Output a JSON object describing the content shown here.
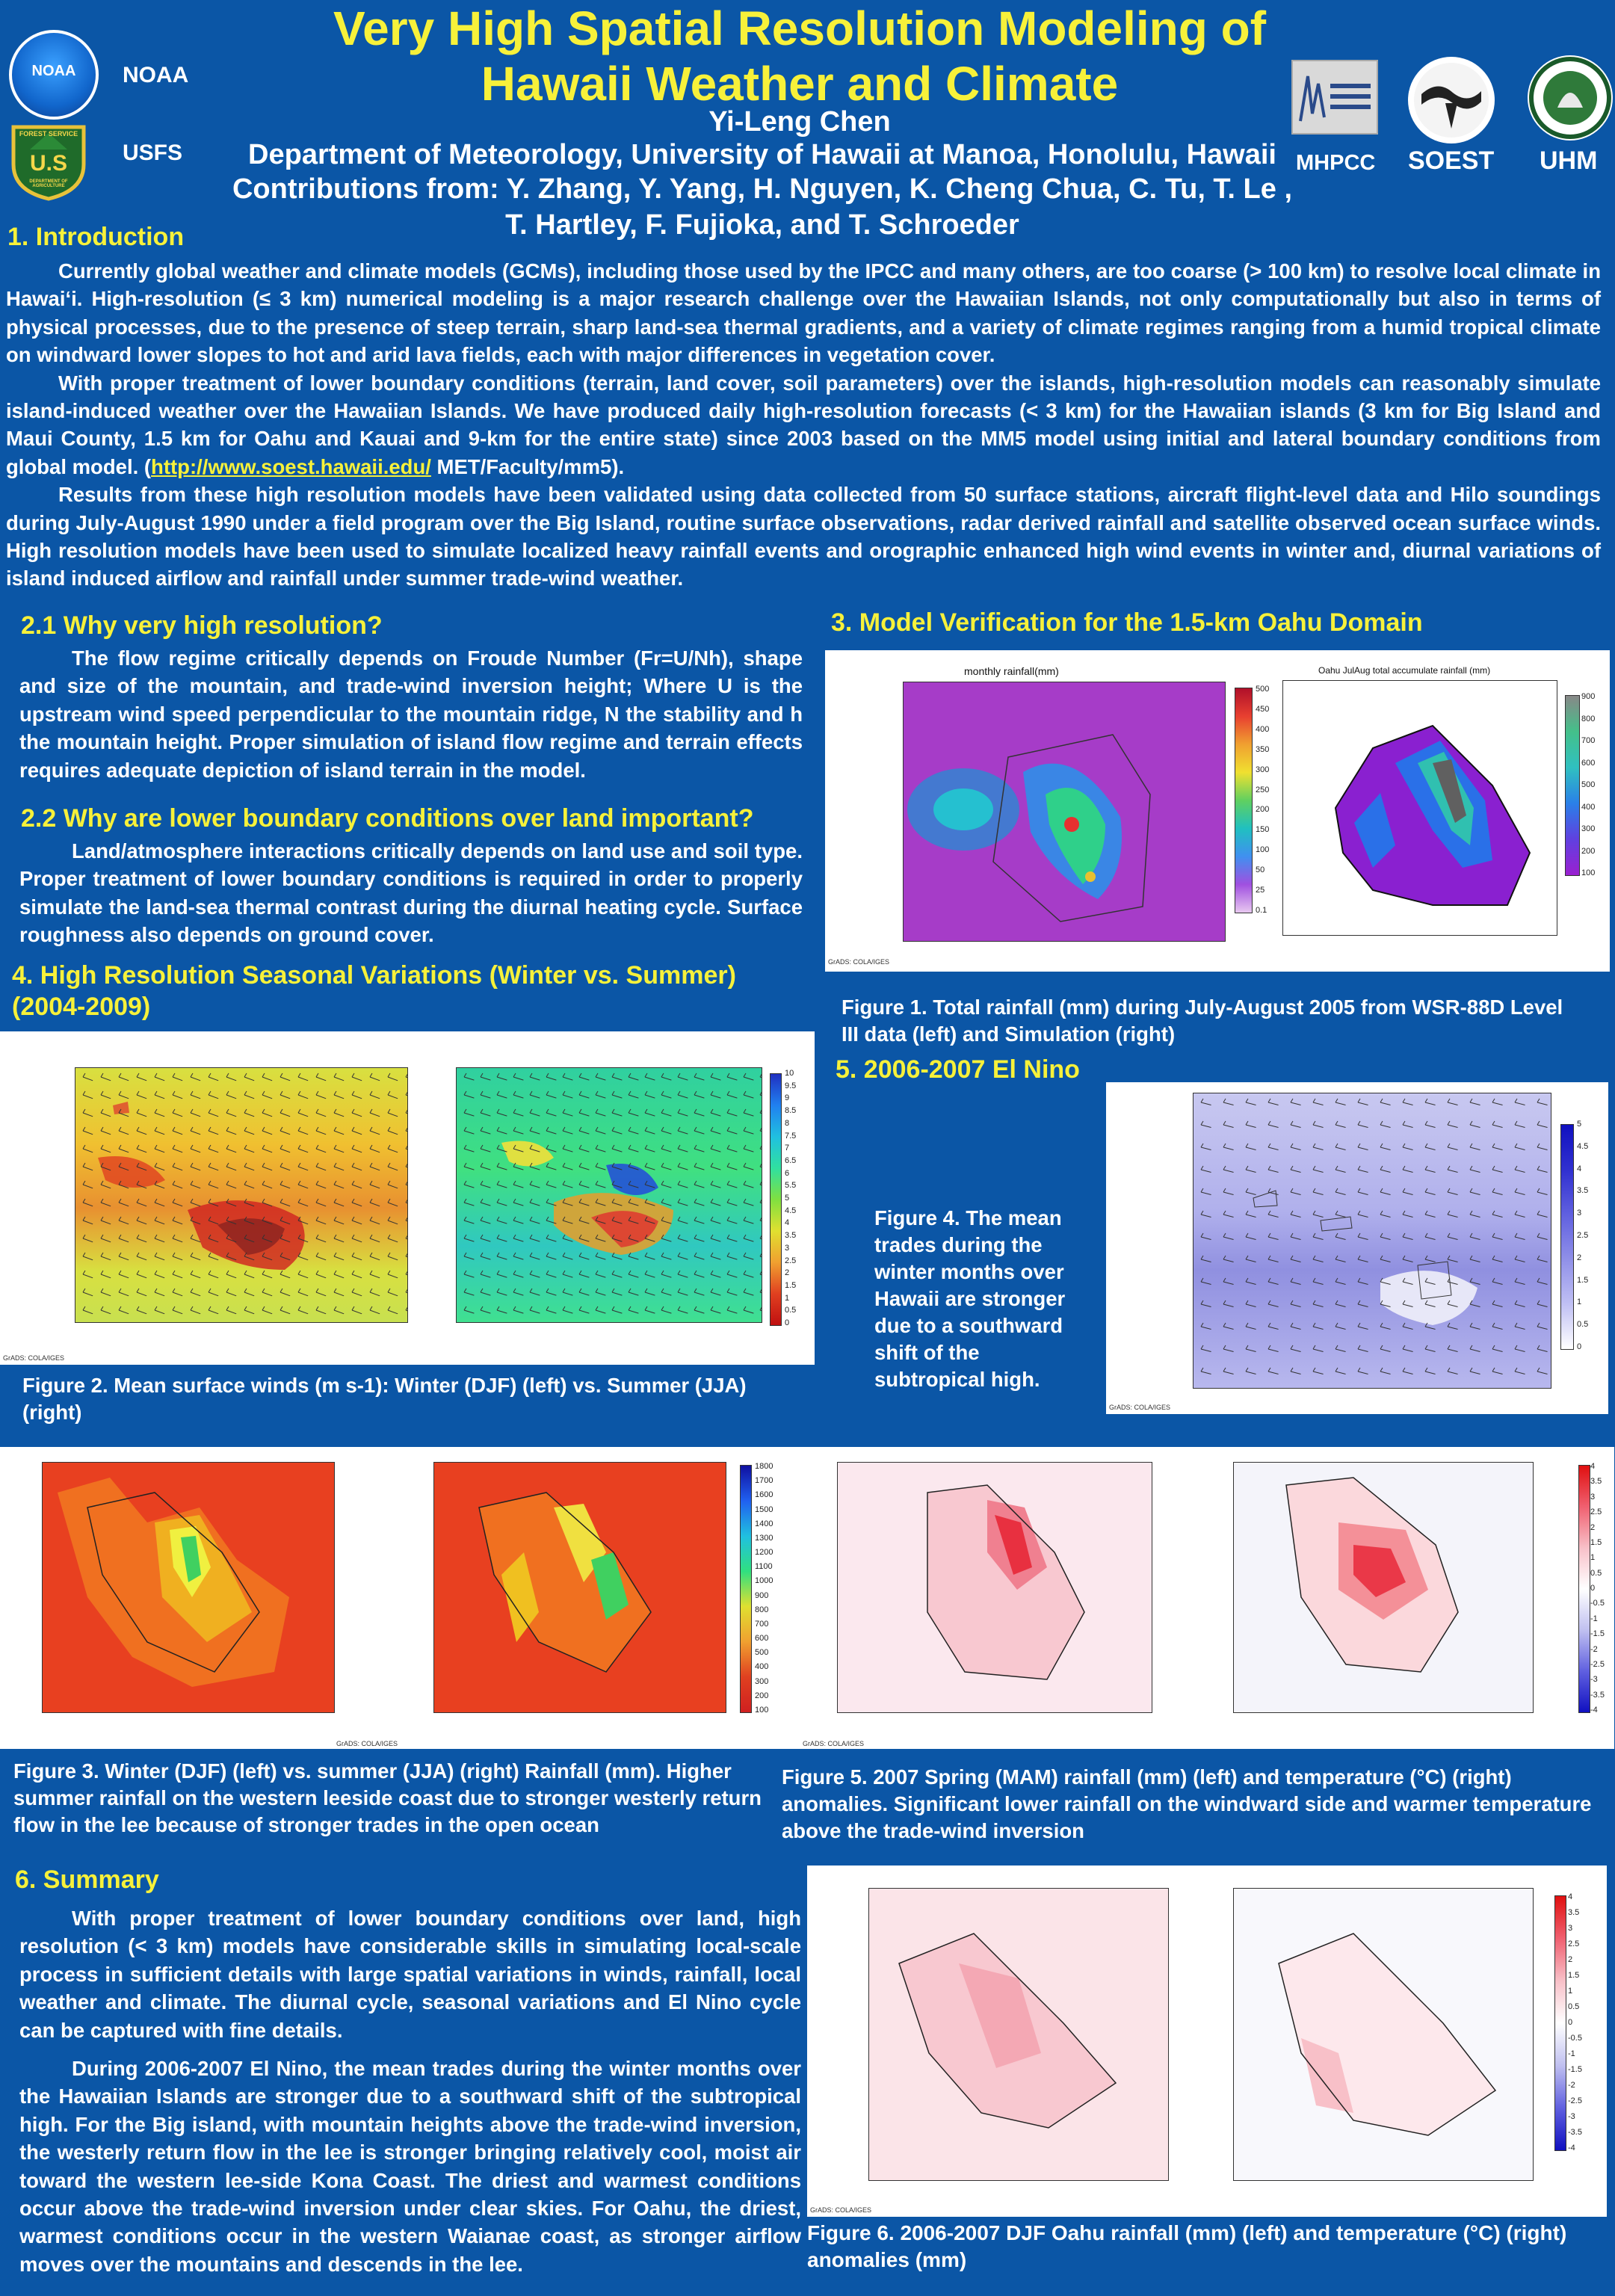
{
  "title": {
    "line1": "Very High Spatial Resolution Modeling of",
    "line2": "Hawaii Weather and Climate"
  },
  "author": "Yi-Leng Chen",
  "affiliation": "Department of Meteorology, University of Hawaii at Manoa, Honolulu, Hawaii",
  "contributions_line1": "Contributions from: Y. Zhang, Y. Yang, H. Nguyen, K. Cheng Chua, C. Tu, T. Le ,",
  "contributions_line2": "T. Hartley, F. Fujioka, and T. Schroeder",
  "logos": {
    "noaa": "NOAA",
    "noaa_badge": "NOAA",
    "usfs": "USFS",
    "usfs_badge_top": "FOREST SERVICE",
    "usfs_badge_mid": "U.S",
    "usfs_badge_bottom": "DEPARTMENT OF AGRICULTURE",
    "mhpcc": "MHPCC",
    "soest": "SOEST",
    "uhm": "UHM"
  },
  "sections": {
    "intro": {
      "heading": "1. Introduction",
      "p1": "Currently global weather and climate models (GCMs), including those used by the IPCC and many others, are too coarse (> 100 km) to resolve local climate in Hawai‘i.    High-resolution (≤ 3 km) numerical modeling is a major research challenge over the Hawaiian Islands, not only computationally but also in terms of physical processes, due to the presence of steep terrain, sharp land-sea thermal gradients, and a variety of climate regimes ranging from a humid tropical climate on windward lower slopes to hot and arid lava fields, each with major differences in vegetation cover.",
      "p2": "With proper treatment of lower boundary conditions (terrain, land cover, soil parameters) over the islands, high-resolution models can reasonably simulate island-induced weather over the Hawaiian Islands.  We have produced daily high-resolution forecasts (< 3 km) for the Hawaiian islands (3 km for Big Island and Maui County, 1.5 km for Oahu and Kauai and 9-km for the entire state) since 2003 based on the MM5 model using initial and lateral boundary conditions from global model. (",
      "p2_link": "http://www.soest.hawaii.edu/",
      "p2_tail": " MET/Faculty/mm5).",
      "p3": "Results from these high resolution models have been validated using data collected from 50 surface stations, aircraft flight-level data and Hilo soundings during July-August 1990 under a field program over the Big Island, routine surface observations, radar derived rainfall and satellite observed ocean surface winds. High resolution models have been used to simulate localized heavy rainfall events and orographic enhanced high wind events  in winter and, diurnal variations of island induced airflow and rainfall under summer trade-wind weather."
    },
    "s21": {
      "heading": "2.1 Why very high resolution?",
      "body": "The flow regime critically depends on Froude Number (Fr=U/Nh), shape and size of the mountain, and trade-wind inversion height; Where U is the upstream wind speed perpendicular to the mountain ridge, N the stability and h the mountain height. Proper simulation of island flow regime and terrain effects requires adequate depiction of island terrain in the model."
    },
    "s22": {
      "heading": "2.2 Why are lower boundary conditions over land important?",
      "body": "Land/atmosphere interactions critically depends on land use and soil type.   Proper treatment of lower boundary conditions is required in order to properly simulate the land-sea thermal contrast during the diurnal heating cycle. Surface roughness also depends on ground cover."
    },
    "s3": {
      "heading": "3. Model Verification for the 1.5-km Oahu Domain"
    },
    "s4": {
      "heading_line1": "4. High Resolution Seasonal Variations (Winter vs. Summer)",
      "heading_line2": "(2004-2009)"
    },
    "s5": {
      "heading": "5. 2006-2007 El Nino"
    },
    "s6": {
      "heading": "6. Summary",
      "p1": "With proper treatment of lower boundary conditions over land, high resolution (< 3 km) models have considerable skills in simulating local-scale process in sufficient details with large spatial variations in winds, rainfall, local weather and climate. The diurnal cycle, seasonal variations and El Nino cycle can be captured  with fine details.",
      "p2": "During 2006-2007 El Nino, the mean trades during the winter months over the Hawaiian Islands are stronger due to a southward shift of the subtropical high. For the Big island, with mountain heights above the trade-wind inversion, the westerly return flow in the lee is stronger bringing relatively cool, moist air toward the western lee-side Kona Coast.  The driest and warmest conditions occur above the trade-wind inversion under clear skies.  For Oahu, the driest, warmest conditions occur in the western Waianae coast, as stronger airflow moves over the mountains and descends in the lee."
    }
  },
  "figures": {
    "fig1": {
      "caption": "Figure 1. Total rainfall (mm) during July-August 2005 from WSR-88D Level III data (left) and Simulation (right)",
      "left_title": "monthly rainfall(mm)",
      "right_title": "Oahu JulAug  total accumulate rainfall (mm)",
      "left_ticks": [
        "500",
        "450",
        "400",
        "350",
        "300",
        "250",
        "200",
        "150",
        "100",
        "50",
        "25",
        "0.1"
      ],
      "right_ticks": [
        "900",
        "800",
        "700",
        "600",
        "500",
        "400",
        "300",
        "200",
        "100"
      ],
      "credit": "GrADS: COLA/IGES"
    },
    "fig2": {
      "caption": "Figure 2. Mean surface winds (m s-1): Winter (DJF) (left) vs. Summer (JJA) (right)",
      "ticks": [
        "10",
        "9.5",
        "9",
        "8.5",
        "8",
        "7.5",
        "7",
        "6.5",
        "6",
        "5.5",
        "5",
        "4.5",
        "4",
        "3.5",
        "3",
        "2.5",
        "2",
        "1.5",
        "1",
        "0.5",
        "0"
      ],
      "credit": "GrADS: COLA/IGES"
    },
    "fig3": {
      "caption": "Figure 3. Winter (DJF) (left) vs. summer (JJA) (right) Rainfall (mm). Higher summer rainfall on the western leeside coast due to stronger westerly return flow in the lee because of stronger trades in the open ocean",
      "ticks": [
        "1800",
        "1700",
        "1600",
        "1500",
        "1400",
        "1300",
        "1200",
        "1100",
        "1000",
        "900",
        "800",
        "700",
        "600",
        "500",
        "400",
        "300",
        "200",
        "100"
      ],
      "credit": "GrADS: COLA/IGES"
    },
    "fig4": {
      "caption": "Figure 4. The mean trades during the winter months over Hawaii are stronger due to a southward shift of the subtropical high.",
      "ticks": [
        "5",
        "4.5",
        "4",
        "3.5",
        "3",
        "2.5",
        "2",
        "1.5",
        "1",
        "0.5",
        "0"
      ],
      "credit": "GrADS: COLA/IGES"
    },
    "fig5": {
      "caption": "Figure 5. 2007 Spring (MAM) rainfall (mm) (left) and temperature (°C) (right) anomalies. Significant lower rainfall on the windward side and warmer temperature above the trade-wind inversion",
      "ticks": [
        "4",
        "3.5",
        "3",
        "2.5",
        "2",
        "1.5",
        "1",
        "0.5",
        "0",
        "-0.5",
        "-1",
        "-1.5",
        "-2",
        "-2.5",
        "-3",
        "-3.5",
        "-4"
      ],
      "credit": "GrADS: COLA/IGES"
    },
    "fig6": {
      "caption": "Figure 6. 2006-2007 DJF Oahu rainfall (mm) (left) and temperature (°C) (right) anomalies (mm)",
      "ticks": [
        "4",
        "3.5",
        "3",
        "2.5",
        "2",
        "1.5",
        "1",
        "0.5",
        "0",
        "-0.5",
        "-1",
        "-1.5",
        "-2",
        "-2.5",
        "-3",
        "-3.5",
        "-4"
      ],
      "credit": "GrADS: COLA/IGES"
    }
  }
}
